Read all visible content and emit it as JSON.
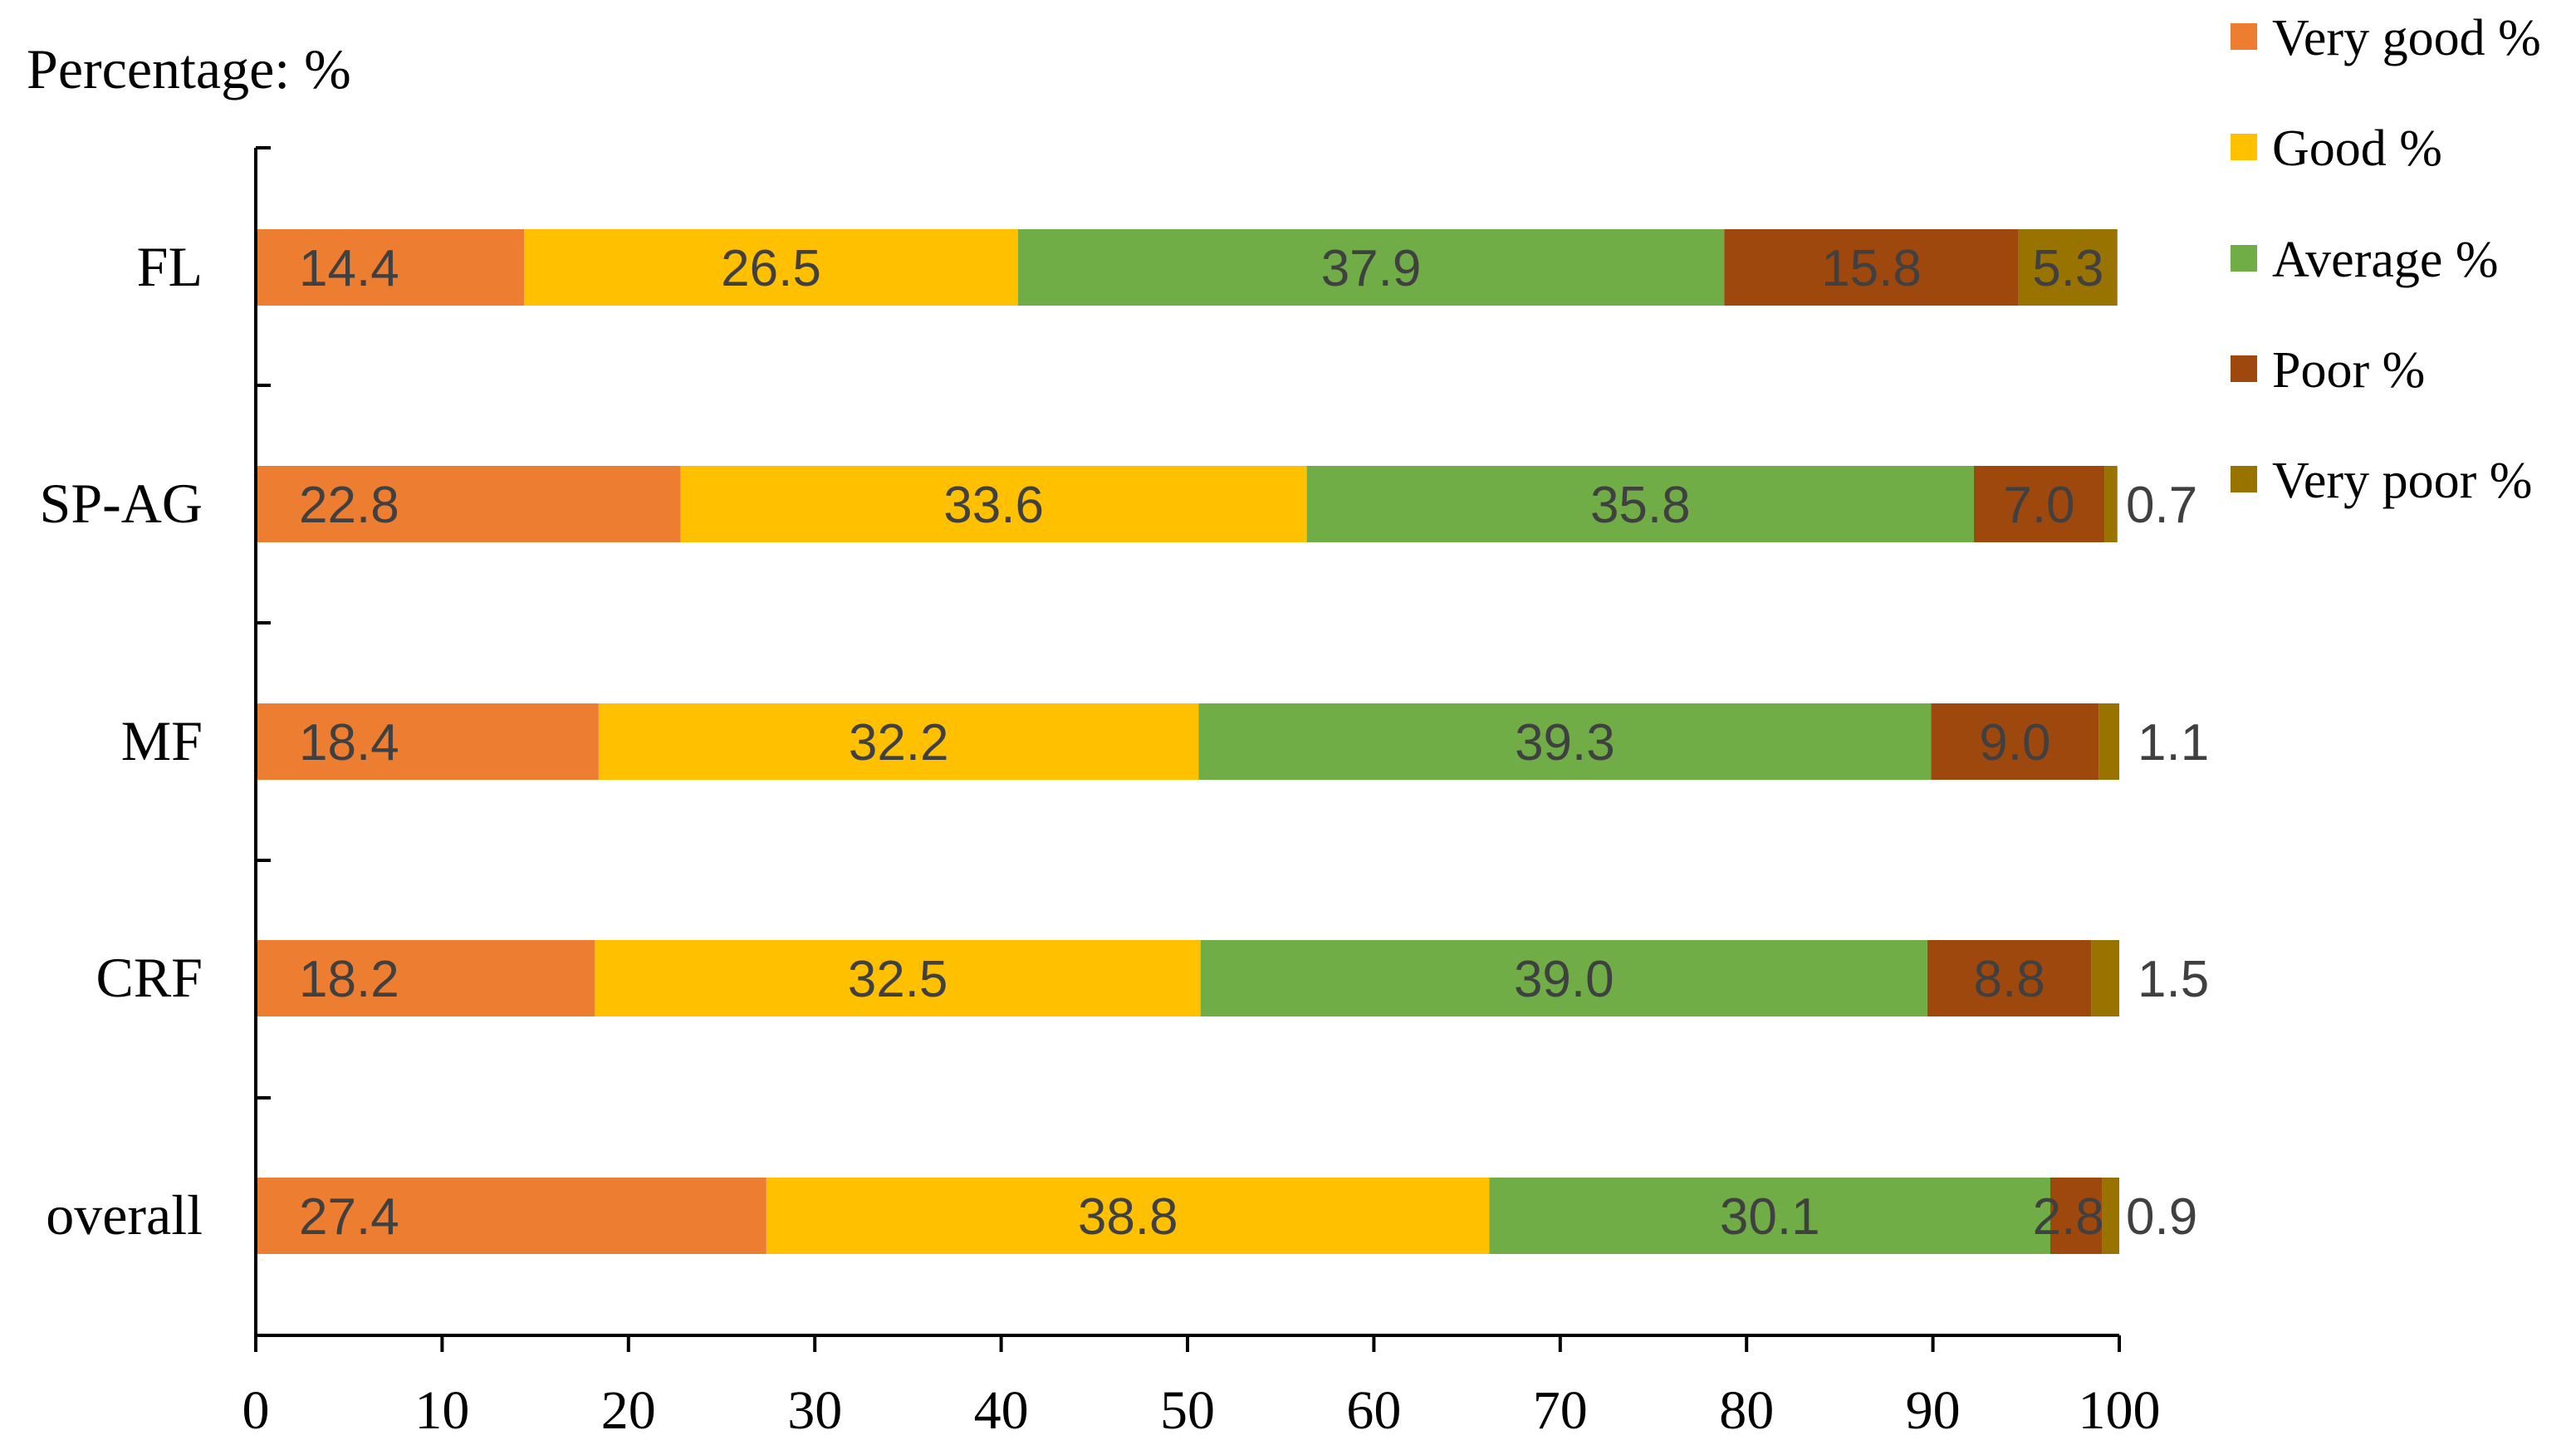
{
  "chart_data": {
    "type": "bar",
    "orientation": "horizontal",
    "stacked": true,
    "title": "Percentage: %",
    "xlabel": "",
    "ylabel": "",
    "xlim": [
      0,
      100
    ],
    "x_ticks": [
      "0",
      "10",
      "20",
      "30",
      "40",
      "50",
      "60",
      "70",
      "80",
      "90",
      "100"
    ],
    "categories": [
      "FL",
      "SP-AG",
      "MF",
      "CRF",
      "overall"
    ],
    "series": [
      {
        "name": "Very good %",
        "color": "#ED7D31",
        "values": [
          14.4,
          22.8,
          18.4,
          18.2,
          27.4
        ],
        "labels": [
          "14.4",
          "22.8",
          "18.4",
          "18.2",
          "27.4"
        ]
      },
      {
        "name": "Good %",
        "color": "#FFC000",
        "values": [
          26.5,
          33.6,
          32.2,
          32.5,
          38.8
        ],
        "labels": [
          "26.5",
          "33.6",
          "32.2",
          "32.5",
          "38.8"
        ]
      },
      {
        "name": "Average %",
        "color": "#70AD47",
        "values": [
          37.9,
          35.8,
          39.3,
          39.0,
          30.1
        ],
        "labels": [
          "37.9",
          "35.8",
          "39.3",
          "39.0",
          "30.1"
        ]
      },
      {
        "name": "Poor %",
        "color": "#9E480E",
        "values": [
          15.8,
          7.0,
          9.0,
          8.8,
          2.8
        ],
        "labels": [
          "15.8",
          "7.0",
          "9.0",
          "8.8",
          "2.8"
        ]
      },
      {
        "name": "Very poor %",
        "color": "#997300",
        "values": [
          5.3,
          0.7,
          1.1,
          1.5,
          0.9
        ],
        "labels": [
          "5.3",
          "0.7",
          "1.1",
          "1.5",
          "0.9"
        ]
      }
    ],
    "legend_position": "top-right",
    "grid": false
  }
}
